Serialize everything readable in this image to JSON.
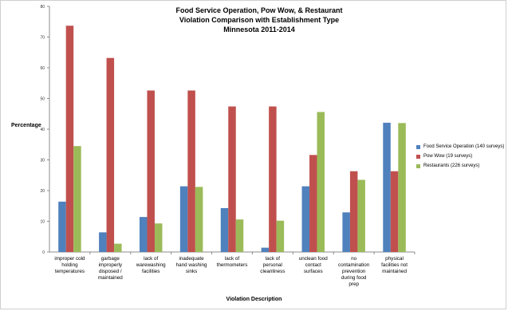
{
  "chart_data": {
    "type": "bar",
    "title_lines": [
      "Food Service Operation, Pow Wow, & Restaurant",
      "Violation Comparison with Establishment Type",
      "Minnesota 2011-2014"
    ],
    "xlabel": "Violation Description",
    "ylabel": "Percentage",
    "ylim": [
      0,
      80
    ],
    "yticks": [
      0,
      10,
      20,
      30,
      40,
      50,
      60,
      70,
      80
    ],
    "grid": false,
    "legend_position": "right",
    "categories": [
      [
        "improper cold",
        "holding",
        "temperatures"
      ],
      [
        "garbage",
        "improperly",
        "disposed /",
        "maintained"
      ],
      [
        "lack of",
        "warewashing",
        "facilities"
      ],
      [
        "inadequate",
        "hand washing",
        "sinks"
      ],
      [
        "lack of",
        "thermometers"
      ],
      [
        "lack of",
        "personal",
        "cleanliness"
      ],
      [
        "unclean food",
        "contact",
        "surfaces"
      ],
      [
        "no",
        "contamination",
        "prevention",
        "during food",
        "prep"
      ],
      [
        "physical",
        "facilities not",
        "maintained"
      ]
    ],
    "series": [
      {
        "name": "Food Service Operation (140 surveys)",
        "color": "#4f81bd",
        "values": [
          16.4,
          6.4,
          11.4,
          21.4,
          14.3,
          1.4,
          21.4,
          12.9,
          42.1
        ]
      },
      {
        "name": "Pow Wow (19 surveys)",
        "color": "#c0504d",
        "values": [
          73.7,
          63.2,
          52.6,
          52.6,
          47.4,
          47.4,
          31.6,
          26.3,
          26.3
        ]
      },
      {
        "name": "Restaurants (226 surveys)",
        "color": "#9bbb59",
        "values": [
          34.5,
          2.7,
          9.3,
          21.2,
          10.6,
          10.2,
          45.6,
          23.5,
          42.0
        ]
      }
    ]
  }
}
